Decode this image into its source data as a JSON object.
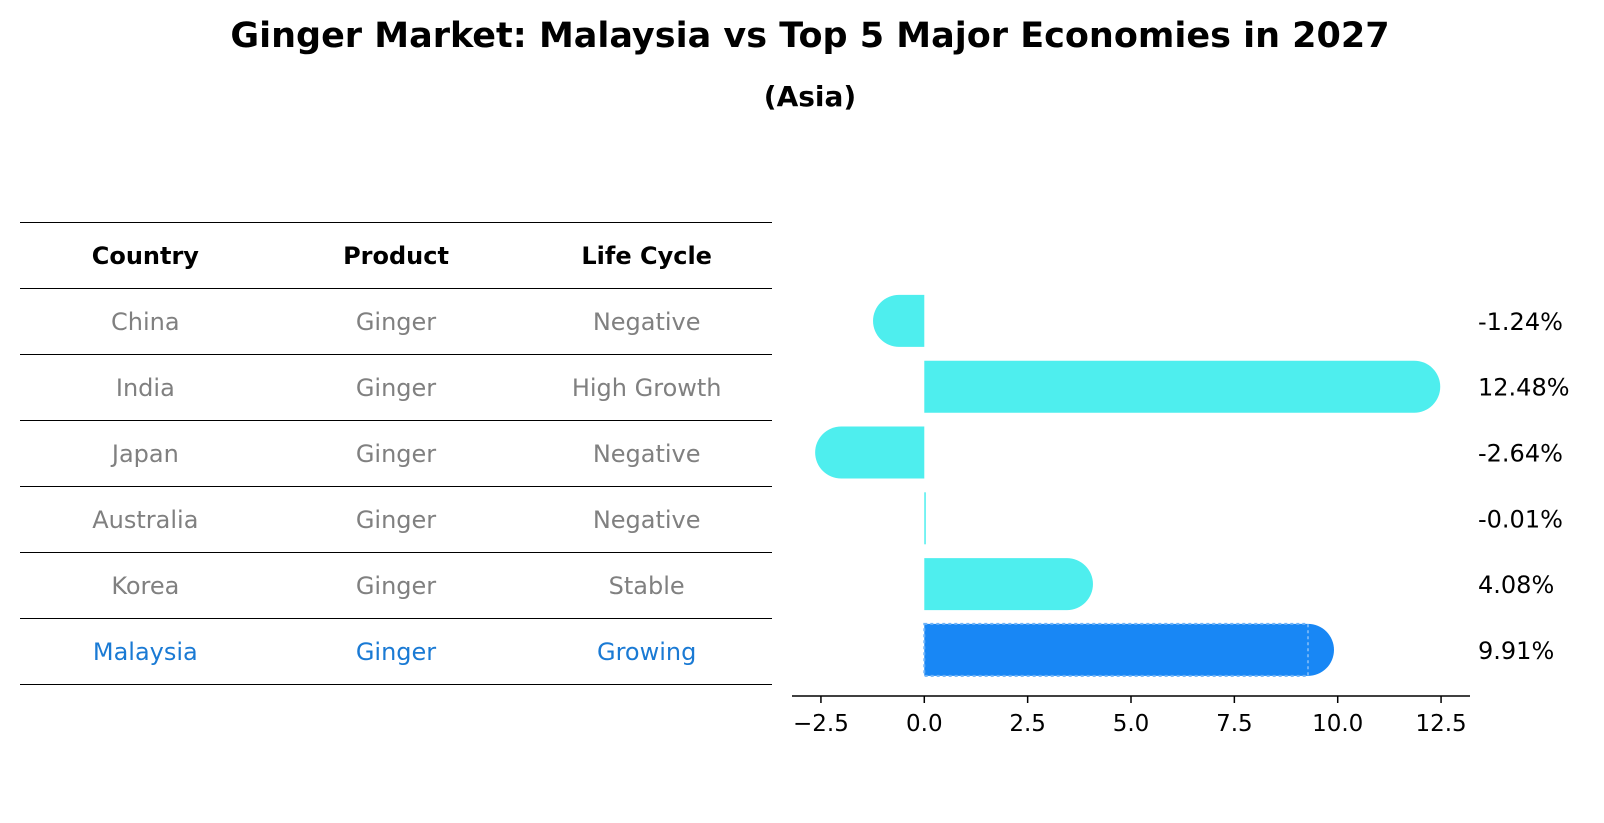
{
  "chart_data": {
    "type": "bar",
    "orientation": "horizontal",
    "title": "Ginger Market: Malaysia vs Top 5 Major Economies in 2027",
    "subtitle": "(Asia)",
    "categories": [
      "China",
      "India",
      "Japan",
      "Australia",
      "Korea",
      "Malaysia"
    ],
    "values": [
      -1.24,
      12.48,
      -2.64,
      -0.01,
      4.08,
      9.91
    ],
    "value_labels": [
      "-1.24%",
      "12.48%",
      "-2.64%",
      "-0.01%",
      "4.08%",
      "9.91%"
    ],
    "highlight": "Malaysia",
    "xlim": [
      -3.2,
      13.2
    ],
    "xticks": [
      -2.5,
      0.0,
      2.5,
      5.0,
      7.5,
      10.0,
      12.5
    ],
    "xtick_labels": [
      "−2.5",
      "0.0",
      "2.5",
      "5.0",
      "7.5",
      "10.0",
      "12.5"
    ],
    "colors": {
      "bar": "#4EEEEE",
      "highlight_bar": "#1887F5"
    }
  },
  "table": {
    "headers": {
      "country": "Country",
      "product": "Product",
      "life_cycle": "Life Cycle"
    },
    "rows": [
      {
        "country": "China",
        "product": "Ginger",
        "life_cycle": "Negative"
      },
      {
        "country": "India",
        "product": "Ginger",
        "life_cycle": "High Growth"
      },
      {
        "country": "Japan",
        "product": "Ginger",
        "life_cycle": "Negative"
      },
      {
        "country": "Australia",
        "product": "Ginger",
        "life_cycle": "Negative"
      },
      {
        "country": "Korea",
        "product": "Ginger",
        "life_cycle": "Stable"
      },
      {
        "country": "Malaysia",
        "product": "Ginger",
        "life_cycle": "Growing"
      }
    ],
    "highlight_color": "#1a7ad4"
  }
}
